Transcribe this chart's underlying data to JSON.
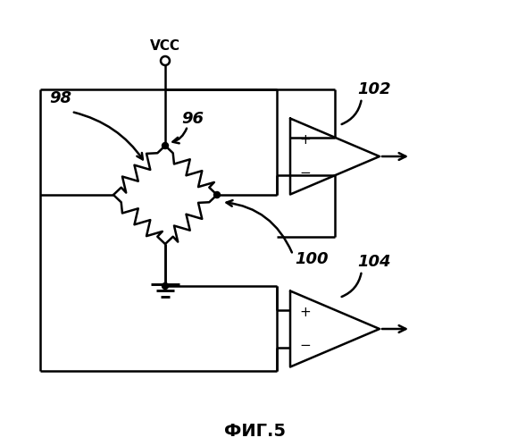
{
  "title": "ФИГ.5",
  "background_color": "#ffffff",
  "line_color": "#000000",
  "label_96": "96",
  "label_98": "98",
  "label_100": "100",
  "label_102": "102",
  "label_104": "104",
  "label_vcc": "VCC",
  "figsize": [
    5.7,
    4.99
  ],
  "dpi": 100
}
